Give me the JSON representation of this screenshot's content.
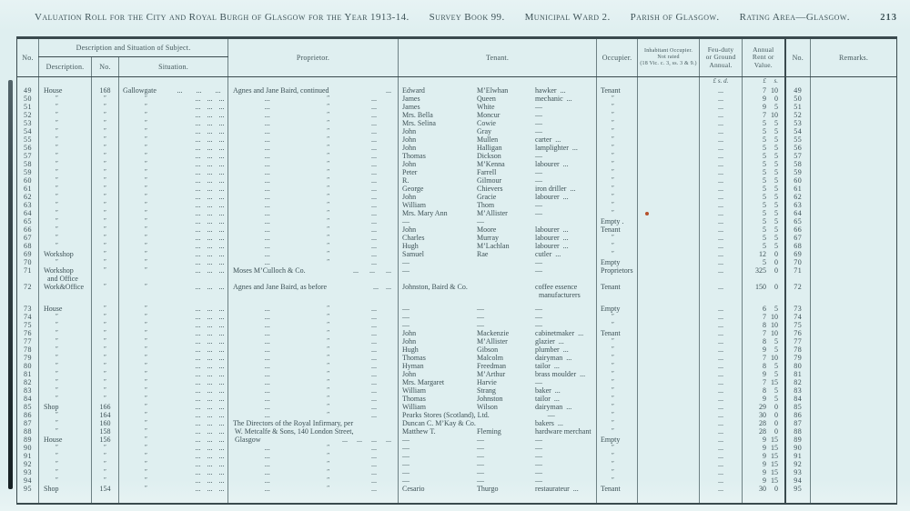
{
  "page": {
    "title_segments": [
      "Valuation Roll for the City and Royal Burgh of Glasgow for the Year 1913-14.",
      "Survey Book 99.",
      "Municipal Ward 2.",
      "Parish of Glasgow.",
      "Rating Area—Glasgow."
    ],
    "page_number": "213"
  },
  "header": {
    "no_left": "No.",
    "desc_group": "Description and Situation of Subject.",
    "description": "Description.",
    "street_no": "No.",
    "situation": "Situation.",
    "proprietor": "Proprietor.",
    "tenant": "Tenant.",
    "occupier": "Occupier.",
    "inhabitant_line1": "Inhabitant Occupier.",
    "inhabitant_line2": "Not rated",
    "inhabitant_line3": "(18 Vic. c. 3, ss. 3 & 9.)",
    "feu_line1": "Feu-duty",
    "feu_line2": "or Ground",
    "feu_line3": "Annual.",
    "rent_line1": "Annual",
    "rent_line2": "Rent or",
    "rent_line3": "Value.",
    "no_right": "No.",
    "remarks": "Remarks.",
    "money_feu": "£  s.  d.",
    "money_rent_pounds": "£",
    "money_rent_shillings": "s."
  },
  "defaults": {
    "sit_dots": [
      "...",
      "...",
      "..."
    ],
    "feu_dots": "..."
  },
  "marks": {
    "red_dot_color": "#b5502b"
  },
  "rows": [
    {
      "n": "49",
      "d": "House",
      "sn": "168",
      "st": "Gallowgate",
      "pt": "n",
      "pn": "Agnes and Jane Baird, continued",
      "pd": "...",
      "t1": "Edward",
      "t2": "M’Elwhan",
      "t3": "hawker",
      "td": 1,
      "oc": "Tenant",
      "rl": "7",
      "rs": "10"
    },
    {
      "n": "50",
      "d": "″",
      "sn": "″",
      "st": "″",
      "pt": "d",
      "t1": "James",
      "t2": "Queen",
      "t3": "mechanic",
      "td": 1,
      "oc": "″",
      "rl": "9",
      "rs": "0"
    },
    {
      "n": "51",
      "d": "″",
      "sn": "″",
      "st": "″",
      "pt": "d",
      "t1": "James",
      "t2": "White",
      "t3": "—",
      "oc": "″",
      "rl": "9",
      "rs": "5"
    },
    {
      "n": "52",
      "d": "″",
      "sn": "″",
      "st": "″",
      "pt": "d",
      "t1": "Mrs. Bella",
      "t2": "Moncur",
      "t3": "—",
      "oc": "″",
      "rl": "7",
      "rs": "10"
    },
    {
      "n": "53",
      "d": "″",
      "sn": "″",
      "st": "″",
      "pt": "d",
      "t1": "Mrs. Selina",
      "t2": "Cowie",
      "t3": "—",
      "oc": "″",
      "rl": "5",
      "rs": "5"
    },
    {
      "n": "54",
      "d": "″",
      "sn": "″",
      "st": "″",
      "pt": "d",
      "t1": "John",
      "t2": "Gray",
      "t3": "—",
      "oc": "″",
      "rl": "5",
      "rs": "5"
    },
    {
      "n": "55",
      "d": "″",
      "sn": "″",
      "st": "″",
      "pt": "d",
      "t1": "John",
      "t2": "Mullen",
      "t3": "carter",
      "td": 1,
      "oc": "″",
      "rl": "5",
      "rs": "5"
    },
    {
      "n": "56",
      "d": "″",
      "sn": "″",
      "st": "″",
      "pt": "d",
      "t1": "John",
      "t2": "Halligan",
      "t3": "lamplighter",
      "td": 1,
      "oc": "″",
      "rl": "5",
      "rs": "5"
    },
    {
      "n": "57",
      "d": "″",
      "sn": "″",
      "st": "″",
      "pt": "d",
      "t1": "Thomas",
      "t2": "Dickson",
      "t3": "—",
      "oc": "″",
      "rl": "5",
      "rs": "5"
    },
    {
      "n": "58",
      "d": "″",
      "sn": "″",
      "st": "″",
      "pt": "d",
      "t1": "John",
      "t2": "M’Kenna",
      "t3": "labourer",
      "td": 1,
      "oc": "″",
      "rl": "5",
      "rs": "5"
    },
    {
      "n": "59",
      "d": "″",
      "sn": "″",
      "st": "″",
      "pt": "d",
      "t1": "Peter",
      "t2": "Farrell",
      "t3": "—",
      "oc": "″",
      "rl": "5",
      "rs": "5"
    },
    {
      "n": "60",
      "d": "″",
      "sn": "″",
      "st": "″",
      "pt": "d",
      "t1": "R.",
      "t2": "Gilmour",
      "t3": "—",
      "oc": "″",
      "rl": "5",
      "rs": "5"
    },
    {
      "n": "61",
      "d": "″",
      "sn": "″",
      "st": "″",
      "pt": "d",
      "t1": "George",
      "t2": "Chievers",
      "t3": "iron driller",
      "td": 1,
      "oc": "″",
      "rl": "5",
      "rs": "5"
    },
    {
      "n": "62",
      "d": "″",
      "sn": "″",
      "st": "″",
      "pt": "d",
      "t1": "John",
      "t2": "Gracie",
      "t3": "labourer",
      "td": 1,
      "oc": "″",
      "rl": "5",
      "rs": "5"
    },
    {
      "n": "63",
      "d": "″",
      "sn": "″",
      "st": "″",
      "pt": "d",
      "t1": "William",
      "t2": "Thom",
      "t3": "—",
      "oc": "″",
      "rl": "5",
      "rs": "5"
    },
    {
      "n": "64",
      "d": "″",
      "sn": "″",
      "st": "″",
      "pt": "d",
      "t1": "Mrs. Mary Ann",
      "t2": "M’Allister",
      "t3": "—",
      "oc": "″",
      "rl": "5",
      "rs": "5",
      "mk": 1
    },
    {
      "n": "65",
      "d": "″",
      "sn": "″",
      "st": "″",
      "pt": "d",
      "t1": "—",
      "t2": "—",
      "t3": "",
      "oc": "Empty .",
      "rl": "5",
      "rs": "5"
    },
    {
      "n": "66",
      "d": "″",
      "sn": "″",
      "st": "″",
      "pt": "d",
      "t1": "John",
      "t2": "Moore",
      "t3": "labourer",
      "td": 1,
      "oc": "Tenant",
      "rl": "5",
      "rs": "5"
    },
    {
      "n": "67",
      "d": "″",
      "sn": "″",
      "st": "″",
      "pt": "d",
      "t1": "Charles",
      "t2": "Murray",
      "t3": "labourer",
      "td": 1,
      "oc": "″",
      "rl": "5",
      "rs": "5"
    },
    {
      "n": "68",
      "d": "″",
      "sn": "″",
      "st": "″",
      "pt": "d",
      "t1": "Hugh",
      "t2": "M’Lachlan",
      "t3": "labourer",
      "td": 1,
      "oc": "″",
      "rl": "5",
      "rs": "5"
    },
    {
      "n": "69",
      "d": "Workshop",
      "sn": "″",
      "st": "″",
      "pt": "d",
      "t1": "Samuel",
      "t2": "Rae",
      "t3": "cutler",
      "td": 1,
      "oc": "″",
      "rl": "12",
      "rs": "0"
    },
    {
      "n": "70",
      "d": "″",
      "sn": "″",
      "st": "″",
      "pt": "d",
      "t1": "—",
      "t2": "",
      "t3": "—",
      "oc": "Empty",
      "rl": "5",
      "rs": "0"
    },
    {
      "n": "71",
      "d": "Workshop",
      "d2": "and Office",
      "sn": "″",
      "st": "″",
      "pt": "n",
      "pn": "Moses M’Culloch & Co.",
      "pd": "...      ...      ...",
      "t1": "—",
      "t2": "",
      "t3": "—",
      "oc": "Proprietors",
      "rl": "325",
      "rs": "0"
    },
    {
      "n": "72",
      "d": "Work&Office",
      "sn": "″",
      "st": "″",
      "pt": "n",
      "pn": "Agnes and Jane Baird, as before",
      "pd": "...    ...",
      "t1": "Johnston, Baird & Co.",
      "t2": "",
      "t3": "coffee essence",
      "t3b": "manufacturers",
      "oc": "Tenant",
      "rl": "150",
      "rs": "0",
      "gp": 1
    },
    {
      "n": "73",
      "d": "House",
      "sn": "″",
      "st": "″",
      "pt": "d",
      "t1": "—",
      "t2": "—",
      "t3": "—",
      "oc": "Empty",
      "rl": "6",
      "rs": "5"
    },
    {
      "n": "74",
      "d": "″",
      "sn": "″",
      "st": "″",
      "pt": "d",
      "t1": "—",
      "t2": "—",
      "t3": "—",
      "oc": "″",
      "rl": "7",
      "rs": "10"
    },
    {
      "n": "75",
      "d": "″",
      "sn": "″",
      "st": "″",
      "pt": "d",
      "t1": "—",
      "t2": "—",
      "t3": "—",
      "oc": "″",
      "rl": "8",
      "rs": "10"
    },
    {
      "n": "76",
      "d": "″",
      "sn": "″",
      "st": "″",
      "pt": "d",
      "t1": "John",
      "t2": "Mackenzie",
      "t3": "cabinetmaker",
      "td": 1,
      "oc": "Tenant",
      "rl": "7",
      "rs": "10"
    },
    {
      "n": "77",
      "d": "″",
      "sn": "″",
      "st": "″",
      "pt": "d",
      "t1": "John",
      "t2": "M’Allister",
      "t3": "glazier",
      "td": 1,
      "oc": "″",
      "rl": "8",
      "rs": "5"
    },
    {
      "n": "78",
      "d": "″",
      "sn": "″",
      "st": "″",
      "pt": "d",
      "t1": "Hugh",
      "t2": "Gibson",
      "t3": "plumber",
      "td": 1,
      "oc": "″",
      "rl": "9",
      "rs": "5"
    },
    {
      "n": "79",
      "d": "″",
      "sn": "″",
      "st": "″",
      "pt": "d",
      "t1": "Thomas",
      "t2": "Malcolm",
      "t3": "dairyman",
      "td": 1,
      "oc": "″",
      "rl": "7",
      "rs": "10"
    },
    {
      "n": "80",
      "d": "″",
      "sn": "″",
      "st": "″",
      "pt": "d",
      "t1": "Hyman",
      "t2": "Freedman",
      "t3": "tailor",
      "td": 1,
      "oc": "″",
      "rl": "8",
      "rs": "5"
    },
    {
      "n": "81",
      "d": "″",
      "sn": "″",
      "st": "″",
      "pt": "d",
      "t1": "John",
      "t2": "M’Arthur",
      "t3": "brass moulder",
      "td": 1,
      "oc": "″",
      "rl": "9",
      "rs": "5"
    },
    {
      "n": "82",
      "d": "″",
      "sn": "″",
      "st": "″",
      "pt": "d",
      "t1": "Mrs. Margaret",
      "t2": "Harvie",
      "t3": "—",
      "oc": "″",
      "rl": "7",
      "rs": "15"
    },
    {
      "n": "83",
      "d": "″",
      "sn": "″",
      "st": "″",
      "pt": "d",
      "t1": "William",
      "t2": "Strang",
      "t3": "baker",
      "td": 1,
      "oc": "″",
      "rl": "8",
      "rs": "5"
    },
    {
      "n": "84",
      "d": "″",
      "sn": "″",
      "st": "″",
      "pt": "d",
      "t1": "Thomas",
      "t2": "Johnston",
      "t3": "tailor",
      "td": 1,
      "oc": "″",
      "rl": "9",
      "rs": "5"
    },
    {
      "n": "85",
      "d": "Shop",
      "sn": "166",
      "st": "″",
      "pt": "d",
      "t1": "William",
      "t2": "Wilson",
      "t3": "dairyman",
      "td": 1,
      "oc": "″",
      "rl": "29",
      "rs": "0"
    },
    {
      "n": "86",
      "d": "″",
      "sn": "164",
      "st": "″",
      "pt": "d",
      "t1": "Pearks Stores (Scotland), Ltd.",
      "t2": "",
      "t3": "—",
      "oc": "″",
      "rl": "30",
      "rs": "0"
    },
    {
      "n": "87",
      "d": "″",
      "sn": "160",
      "st": "″",
      "pt": "n",
      "pn": "The Directors of the Royal Infirmary, per",
      "t1": "Duncan C. M’Kay & Co.",
      "t2": "",
      "t3": "bakers",
      "td": 1,
      "oc": "″",
      "rl": "28",
      "rs": "0"
    },
    {
      "n": "88",
      "d": "″",
      "sn": "158",
      "st": "″",
      "pt": "n",
      "pn": " W. Metcalfe & Sons, 140 London Street,",
      "t1": "Matthew T.",
      "t2": "Fleming",
      "t3": "hardware merchant",
      "oc": "″",
      "rl": "28",
      "rs": "0"
    },
    {
      "n": "89",
      "d": "House",
      "sn": "156",
      "st": "″",
      "pt": "n",
      "pn": " Glasgow",
      "pd": "...     ...     ...     ...",
      "t1": "—",
      "t2": "—",
      "t3": "—",
      "oc": "Empty",
      "rl": "9",
      "rs": "15"
    },
    {
      "n": "90",
      "d": "″",
      "sn": "″",
      "st": "″",
      "pt": "d",
      "t1": "—",
      "t2": "—",
      "t3": "—",
      "oc": "″",
      "rl": "9",
      "rs": "15"
    },
    {
      "n": "91",
      "d": "″",
      "sn": "″",
      "st": "″",
      "pt": "d",
      "t1": "—",
      "t2": "—",
      "t3": "—",
      "oc": "″",
      "rl": "9",
      "rs": "15"
    },
    {
      "n": "92",
      "d": "″",
      "sn": "″",
      "st": "″",
      "pt": "d",
      "t1": "—",
      "t2": "—",
      "t3": "—",
      "oc": "″",
      "rl": "9",
      "rs": "15"
    },
    {
      "n": "93",
      "d": "″",
      "sn": "″",
      "st": "″",
      "pt": "d",
      "t1": "—",
      "t2": "—",
      "t3": "—",
      "oc": "″",
      "rl": "9",
      "rs": "15"
    },
    {
      "n": "94",
      "d": "″",
      "sn": "″",
      "st": "″",
      "pt": "d",
      "t1": "—",
      "t2": "—",
      "t3": "—",
      "oc": "″",
      "rl": "9",
      "rs": "15"
    },
    {
      "n": "95",
      "d": "Shop",
      "sn": "154",
      "st": "″",
      "pt": "d",
      "t1": "Cesario",
      "t2": "Thurgo",
      "t3": "restaurateur",
      "td": 1,
      "oc": "Tenant",
      "rl": "30",
      "rs": "0"
    }
  ]
}
